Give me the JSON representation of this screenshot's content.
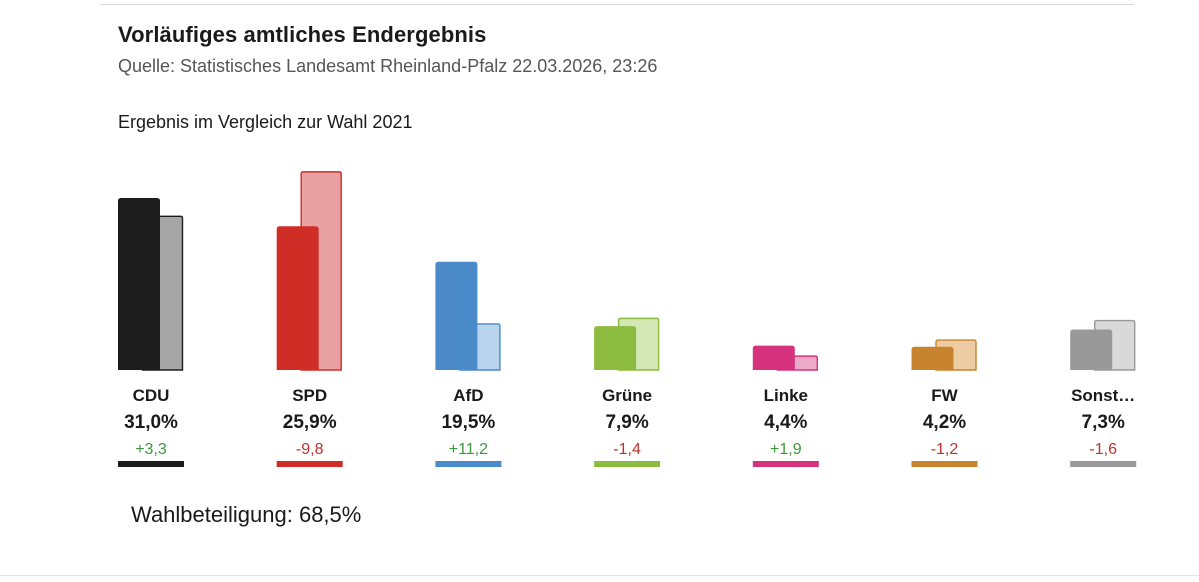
{
  "header": {
    "title": "Vorläufiges amtliches Endergebnis",
    "source": "Quelle: Statistisches Landesamt Rheinland-Pfalz 22.03.2026, 23:26",
    "subtitle": "Ergebnis im Vergleich zur Wahl 2021"
  },
  "footer": {
    "turnout": "Wahlbeteiligung: 68,5%"
  },
  "colors": {
    "positive": "#3a9a3a",
    "negative": "#c0312b"
  },
  "chart_data": {
    "type": "bar",
    "title": "Ergebnis im Vergleich zur Wahl 2021",
    "categories": [
      "CDU",
      "SPD",
      "AfD",
      "Grüne",
      "Linke",
      "FW",
      "Sonst…"
    ],
    "series": [
      {
        "values": [
          31.0,
          25.9,
          19.5,
          7.9,
          4.4,
          4.2,
          7.3
        ]
      },
      {
        "values": [
          27.7,
          35.7,
          8.3,
          9.3,
          2.5,
          5.4,
          8.9
        ]
      }
    ],
    "value_labels": [
      "31,0%",
      "25,9%",
      "19,5%",
      "7,9%",
      "4,4%",
      "4,2%",
      "7,3%"
    ],
    "change_labels": [
      "+3,3",
      "-9,8",
      "+11,2",
      "-1,4",
      "+1,9",
      "-1,2",
      "-1,6"
    ],
    "change_values": [
      3.3,
      -9.8,
      11.2,
      -1.4,
      1.9,
      -1.2,
      -1.6
    ],
    "colors": [
      "#1c1c1c",
      "#d12d27",
      "#4a8ac8",
      "#8dbb3f",
      "#d6327e",
      "#c8832f",
      "#999999"
    ],
    "colors_2021": [
      "#a6a6a6",
      "#e8a2a4",
      "#b9d5ee",
      "#d3e8b4",
      "#ecaac8",
      "#edcca3",
      "#d9d9d9"
    ],
    "ylim": [
      0,
      36
    ],
    "grid": false,
    "legend": "none"
  }
}
